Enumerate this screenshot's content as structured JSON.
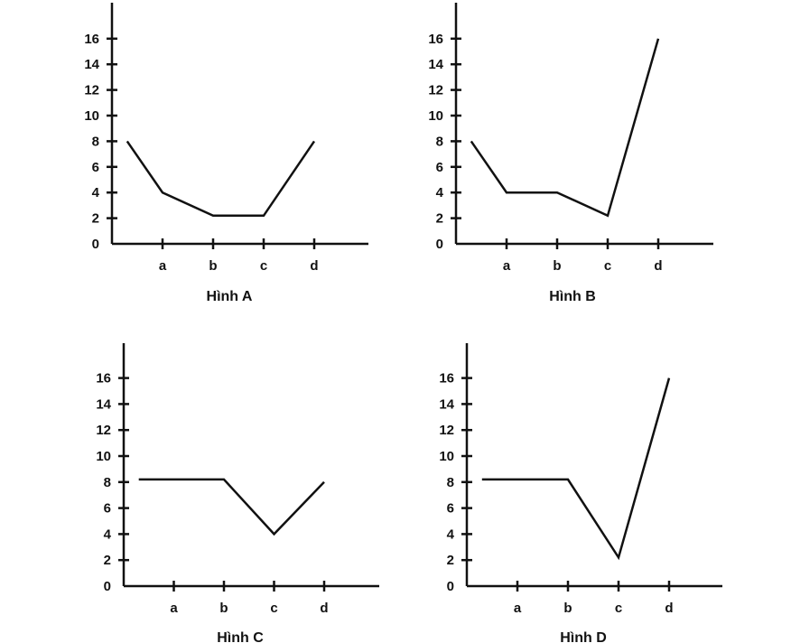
{
  "chart_data": [
    {
      "type": "line",
      "title": "Hình A",
      "categories": [
        "a",
        "b",
        "c",
        "d"
      ],
      "yticks": [
        "0",
        "2",
        "4",
        "6",
        "8",
        "10",
        "12",
        "14",
        "16"
      ],
      "ylim": [
        0,
        18
      ],
      "grid": false,
      "series": [
        {
          "points": [
            {
              "x": 0.3,
              "y": 8
            },
            {
              "x": 1,
              "y": 4
            },
            {
              "x": 2,
              "y": 2.2
            },
            {
              "x": 3,
              "y": 2.2
            },
            {
              "x": 4,
              "y": 8
            }
          ]
        }
      ]
    },
    {
      "type": "line",
      "title": "Hình B",
      "categories": [
        "a",
        "b",
        "c",
        "d"
      ],
      "yticks": [
        "0",
        "2",
        "4",
        "6",
        "8",
        "10",
        "12",
        "14",
        "16"
      ],
      "ylim": [
        0,
        18
      ],
      "grid": false,
      "series": [
        {
          "points": [
            {
              "x": 0.3,
              "y": 8
            },
            {
              "x": 1,
              "y": 4
            },
            {
              "x": 2,
              "y": 4
            },
            {
              "x": 3,
              "y": 2.2
            },
            {
              "x": 4,
              "y": 16
            }
          ]
        }
      ]
    },
    {
      "type": "line",
      "title": "Hình C",
      "categories": [
        "a",
        "b",
        "c",
        "d"
      ],
      "yticks": [
        "0",
        "2",
        "4",
        "6",
        "8",
        "10",
        "12",
        "14",
        "16"
      ],
      "ylim": [
        0,
        18
      ],
      "grid": false,
      "series": [
        {
          "points": [
            {
              "x": 0.3,
              "y": 8.2
            },
            {
              "x": 2,
              "y": 8.2
            },
            {
              "x": 3,
              "y": 4
            },
            {
              "x": 4,
              "y": 8
            }
          ]
        }
      ]
    },
    {
      "type": "line",
      "title": "Hình D",
      "categories": [
        "a",
        "b",
        "c",
        "d"
      ],
      "yticks": [
        "0",
        "2",
        "4",
        "6",
        "8",
        "10",
        "12",
        "14",
        "16"
      ],
      "ylim": [
        0,
        18
      ],
      "grid": false,
      "series": [
        {
          "points": [
            {
              "x": 0.3,
              "y": 8.2
            },
            {
              "x": 2,
              "y": 8.2
            },
            {
              "x": 3,
              "y": 2.2
            },
            {
              "x": 4,
              "y": 16
            }
          ]
        }
      ]
    }
  ]
}
